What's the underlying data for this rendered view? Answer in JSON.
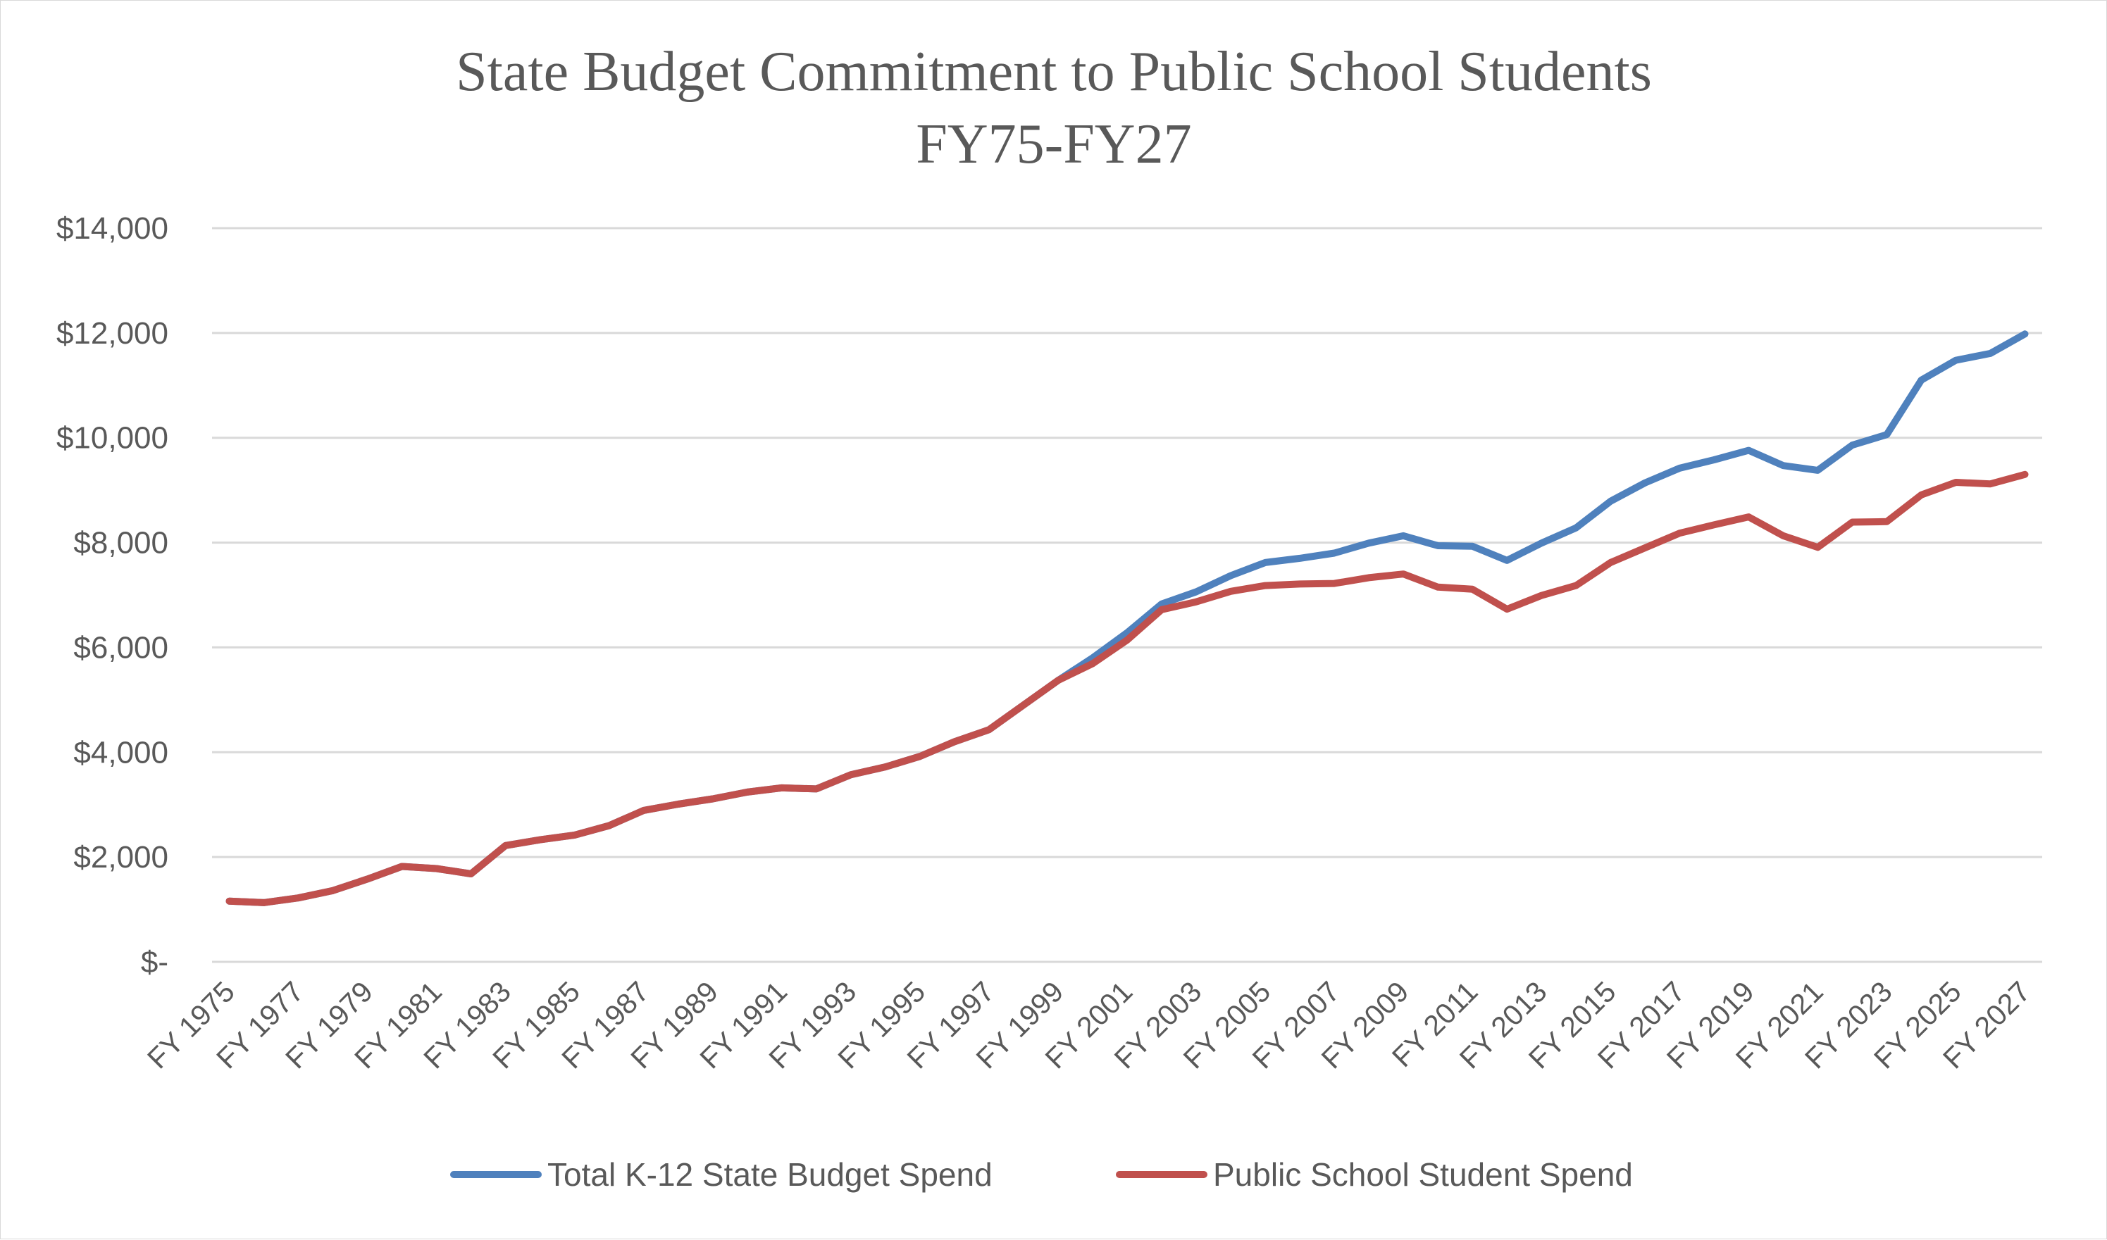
{
  "chart_data": {
    "type": "line",
    "title": "State Budget Commitment to Public School Students",
    "subtitle": "FY75-FY27",
    "xlabel": "",
    "ylabel": "",
    "ylim": [
      0,
      14000
    ],
    "grid": true,
    "legend_position": "bottom",
    "y_ticks": [
      0,
      2000,
      4000,
      6000,
      8000,
      10000,
      12000,
      14000
    ],
    "y_tick_labels": [
      "$-",
      "$2,000",
      "$4,000",
      "$6,000",
      "$8,000",
      "$10,000",
      "$12,000",
      "$14,000"
    ],
    "categories": [
      "FY 1975",
      "FY 1976",
      "FY 1977",
      "FY 1978",
      "FY 1979",
      "FY 1980",
      "FY 1981",
      "FY 1982",
      "FY 1983",
      "FY 1984",
      "FY 1985",
      "FY 1986",
      "FY 1987",
      "FY 1988",
      "FY 1989",
      "FY 1990",
      "FY 1991",
      "FY 1992",
      "FY 1993",
      "FY 1994",
      "FY 1995",
      "FY 1996",
      "FY 1997",
      "FY 1998",
      "FY 1999",
      "FY 2000",
      "FY 2001",
      "FY 2002",
      "FY 2003",
      "FY 2004",
      "FY 2005",
      "FY 2006",
      "FY 2007",
      "FY 2008",
      "FY 2009",
      "FY 2010",
      "FY 2011",
      "FY 2012",
      "FY 2013",
      "FY 2014",
      "FY 2015",
      "FY 2016",
      "FY 2017",
      "FY 2018",
      "FY 2019",
      "FY 2020",
      "FY 2021",
      "FY 2022",
      "FY 2023",
      "FY 2024",
      "FY 2025",
      "FY 2026",
      "FY 2027"
    ],
    "x_tick_labels": [
      "FY 1975",
      "FY 1977",
      "FY 1979",
      "FY 1981",
      "FY 1983",
      "FY 1985",
      "FY 1987",
      "FY 1989",
      "FY 1991",
      "FY 1993",
      "FY 1995",
      "FY 1997",
      "FY 1999",
      "FY 2001",
      "FY 2003",
      "FY 2005",
      "FY 2007",
      "FY 2009",
      "FY 2011",
      "FY 2013",
      "FY 2015",
      "FY 2017",
      "FY 2019",
      "FY 2021",
      "FY 2023",
      "FY 2025",
      "FY 2027"
    ],
    "series": [
      {
        "name": "Total K-12 State Budget Spend",
        "color": "#4f81bd",
        "values": [
          1160,
          1130,
          1220,
          1360,
          1580,
          1820,
          1780,
          1680,
          2220,
          2330,
          2420,
          2600,
          2890,
          3010,
          3110,
          3240,
          3320,
          3300,
          3570,
          3720,
          3920,
          4200,
          4430,
          4900,
          5370,
          5800,
          6280,
          6830,
          7060,
          7370,
          7620,
          7700,
          7800,
          7990,
          8130,
          7940,
          7930,
          7660,
          7990,
          8280,
          8790,
          9140,
          9420,
          9580,
          9760,
          9470,
          9380,
          9860,
          10060,
          11100,
          11480,
          11610,
          11980
        ]
      },
      {
        "name": "Public School Student Spend",
        "color": "#c0504d",
        "values": [
          1160,
          1130,
          1220,
          1360,
          1580,
          1820,
          1780,
          1680,
          2220,
          2330,
          2420,
          2600,
          2890,
          3010,
          3110,
          3240,
          3320,
          3300,
          3570,
          3720,
          3920,
          4200,
          4430,
          4900,
          5370,
          5690,
          6140,
          6720,
          6870,
          7070,
          7180,
          7210,
          7220,
          7330,
          7400,
          7150,
          7110,
          6730,
          6990,
          7180,
          7620,
          7900,
          8180,
          8340,
          8490,
          8130,
          7910,
          8390,
          8400,
          8910,
          9150,
          9120,
          9300
        ]
      }
    ]
  }
}
